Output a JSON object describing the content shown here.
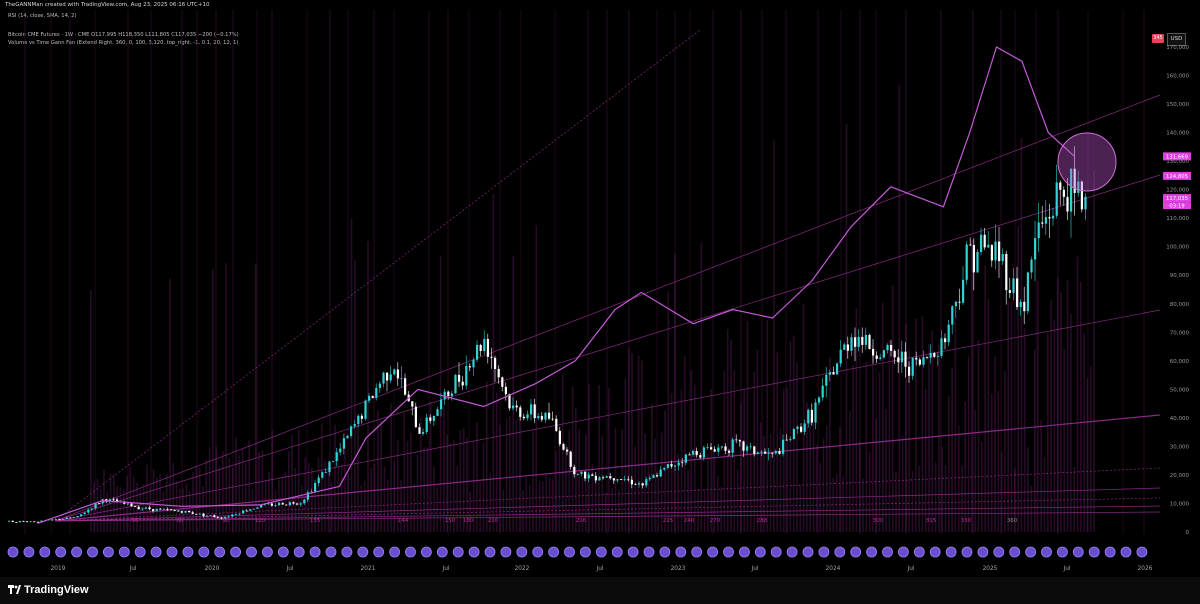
{
  "header": {
    "credit": "TheGANNMan created with TradingView.com, Aug 23, 2025 06:16 UTC+10"
  },
  "legend": {
    "rsi": "RSI (14, close, SMA, 14, 2)",
    "main": "Bitcoin CME Futures · 1W · CME  O117,995  H118,350  L111,805  C117,035  −200 (−0.17%)",
    "indicator": "Volume vs Time Gann Fan (Extend Right, 360, 0, 100, 3,120, top_right, -1, 0.1, 20, 12, 1)"
  },
  "currency_button": "USD",
  "flag_label": "345",
  "colors": {
    "background": "#000000",
    "candle_up": "#2fd5d5",
    "candle_down": "#ffffff",
    "rsi_line": "#c45ad6",
    "fan_lines": "#a0309a",
    "grid_vertical": "#4a1744",
    "price_tag": "#e040e0",
    "date_ball": "#6a4ed0"
  },
  "branding": {
    "logo_text": "TradingView"
  },
  "chart_data": {
    "type": "line",
    "x_axis": {
      "tick_labels": [
        "2019",
        "Jul",
        "2020",
        "Jul",
        "2021",
        "Jul",
        "2022",
        "Jul",
        "2023",
        "Jul",
        "2024",
        "Jul",
        "2025",
        "Jul",
        "2026"
      ]
    },
    "y_axis": {
      "scale": "linear",
      "range": [
        0,
        170000
      ],
      "tick_labels": [
        "0",
        "10,000",
        "20,000",
        "30,000",
        "40,000",
        "50,000",
        "60,000",
        "70,000",
        "80,000",
        "90,000",
        "100,000",
        "110,000",
        "120,000",
        "130,000",
        "140,000",
        "150,000",
        "160,000",
        "170,000"
      ],
      "price_tags": [
        "131,669",
        "124,805",
        "117,035",
        "03:19"
      ]
    },
    "time_cycle_labels": [
      "30",
      "60",
      "90",
      "120",
      "135",
      "144",
      "150",
      "180",
      "210",
      "216",
      "225",
      "240",
      "270",
      "288",
      "300",
      "315",
      "330",
      "360"
    ],
    "price_series": {
      "name": "Bitcoin CME Futures",
      "x": [
        "2019-01",
        "2019-04",
        "2019-06",
        "2019-09",
        "2019-12",
        "2020-03",
        "2020-06",
        "2020-09",
        "2020-12",
        "2021-02",
        "2021-04",
        "2021-06",
        "2021-08",
        "2021-11",
        "2022-01",
        "2022-04",
        "2022-06",
        "2022-09",
        "2022-11",
        "2023-01",
        "2023-03",
        "2023-06",
        "2023-09",
        "2023-12",
        "2024-03",
        "2024-05",
        "2024-08",
        "2024-10",
        "2024-12",
        "2025-02",
        "2025-04",
        "2025-05",
        "2025-07",
        "2025-08"
      ],
      "y": [
        3700,
        5200,
        11500,
        8300,
        7200,
        5000,
        9300,
        10500,
        29000,
        45000,
        60000,
        35000,
        47000,
        68000,
        43000,
        40000,
        20000,
        19500,
        16500,
        23000,
        28000,
        30500,
        26500,
        42000,
        70000,
        63000,
        58000,
        68000,
        100000,
        98000,
        78000,
        104000,
        120000,
        117035
      ]
    },
    "rsi_overlay": {
      "x": [
        "2019-01",
        "2019-06",
        "2019-12",
        "2020-06",
        "2020-12",
        "2021-02",
        "2021-06",
        "2021-11",
        "2022-03",
        "2022-06",
        "2022-09",
        "2022-11",
        "2023-03",
        "2023-06",
        "2023-09",
        "2023-12",
        "2024-03",
        "2024-06",
        "2024-10",
        "2024-12",
        "2025-02",
        "2025-04",
        "2025-06",
        "2025-08"
      ],
      "y": [
        3000,
        11000,
        9000,
        9500,
        16000,
        33000,
        50000,
        44000,
        52000,
        60000,
        78000,
        84000,
        73000,
        78000,
        75000,
        88000,
        107000,
        121000,
        114000,
        140000,
        170000,
        165000,
        140000,
        131669
      ]
    },
    "grid": "vertical-cycle-lines",
    "legend_position": "top-left"
  }
}
